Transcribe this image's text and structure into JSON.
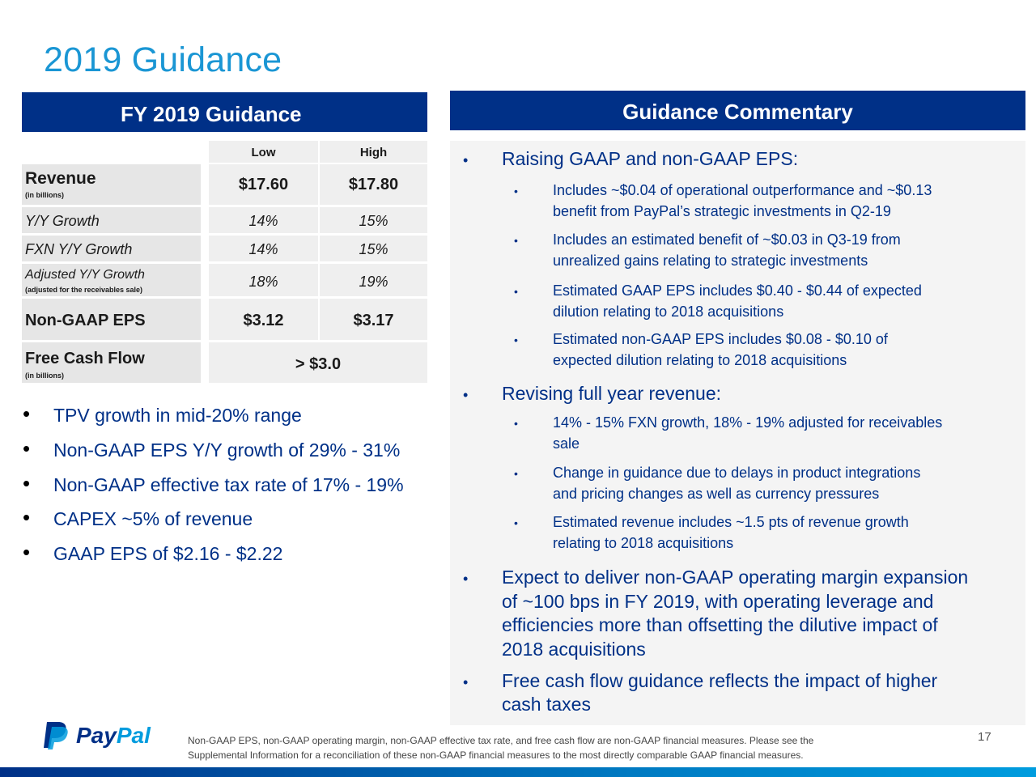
{
  "title": "2019 Guidance",
  "left_header": "FY 2019 Guidance",
  "right_header": "Guidance Commentary",
  "table": {
    "col_low": "Low",
    "col_high": "High",
    "revenue_label": "Revenue",
    "revenue_sub": "(in billions)",
    "revenue_low": "$17.60",
    "revenue_high": "$17.80",
    "yy_label": "Y/Y Growth",
    "yy_low": "14%",
    "yy_high": "15%",
    "fxn_label": "FXN Y/Y Growth",
    "fxn_low": "14%",
    "fxn_high": "15%",
    "adj_label": "Adjusted Y/Y Growth",
    "adj_sub": "(adjusted for the receivables sale)",
    "adj_low": "18%",
    "adj_high": "19%",
    "eps_label": "Non-GAAP EPS",
    "eps_low": "$3.12",
    "eps_high": "$3.17",
    "fcf_label": "Free Cash Flow",
    "fcf_sub": "(in billions)",
    "fcf_value": "> $3.0"
  },
  "left_bullets": [
    "TPV growth in mid-20% range",
    "Non-GAAP EPS Y/Y growth of 29% - 31%",
    "Non-GAAP effective tax rate of 17% - 19%",
    "CAPEX ~5% of revenue",
    "GAAP EPS of $2.16 - $2.22"
  ],
  "commentary": {
    "eps_head": "Raising GAAP and non-GAAP EPS:",
    "eps_1a": "Includes ~$0.04 of operational outperformance and ~$0.13",
    "eps_1b": "benefit from PayPal’s strategic investments in Q2-19",
    "eps_2a": "Includes an estimated benefit of ~$0.03 in Q3-19 from",
    "eps_2b": "unrealized gains relating to strategic investments",
    "eps_3a": "Estimated GAAP EPS includes $0.40 - $0.44 of expected",
    "eps_3b": "dilution relating to 2018 acquisitions",
    "eps_4a": "Estimated non-GAAP EPS includes $0.08 - $0.10 of",
    "eps_4b": "expected dilution relating to 2018 acquisitions",
    "rev_head": "Revising full year revenue:",
    "rev_1a": "14% - 15% FXN growth, 18% - 19% adjusted for receivables",
    "rev_1b": "sale",
    "rev_2a": "Change in guidance due to delays in product integrations",
    "rev_2b": "and pricing changes as well as currency pressures",
    "rev_3a": "Estimated revenue includes ~1.5 pts of revenue growth",
    "rev_3b": "relating to 2018 acquisitions",
    "margin_a": "Expect to deliver non-GAAP operating margin expansion",
    "margin_b": "of ~100 bps in FY 2019, with operating leverage and",
    "margin_c": "efficiencies more than offsetting the dilutive impact of",
    "margin_d": "2018 acquisitions",
    "fcf_a": "Free cash flow guidance reflects the impact of higher",
    "fcf_b": "cash taxes"
  },
  "footnote_1": "Non-GAAP EPS, non-GAAP operating margin, non-GAAP effective tax rate, and free cash flow are non-GAAP financial measures. Please see the",
  "footnote_2": "Supplemental Information for a reconciliation of these non-GAAP financial measures to the most directly comparable GAAP financial measures.",
  "page_number": "17",
  "logo": {
    "pay": "Pay",
    "pal": "Pal"
  },
  "colors": {
    "title": "#1a96d4",
    "header_band": "#003087",
    "text_blue": "#003087"
  }
}
